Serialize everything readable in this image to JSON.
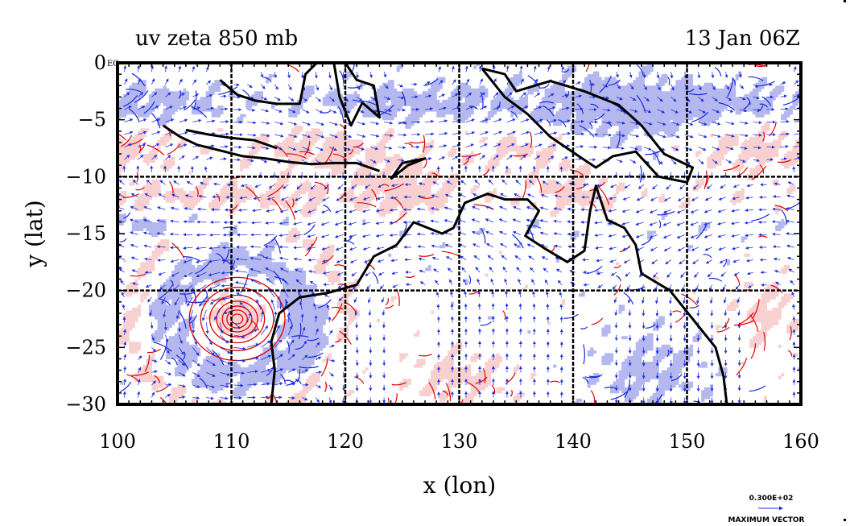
{
  "chart_data": {
    "type": "contour-vector-map",
    "title_left": "uv zeta 850 mb",
    "title_right": "13 Jan 06Z",
    "xlabel": "x (lon)",
    "ylabel": "y (lat)",
    "xlim": [
      100,
      160
    ],
    "ylim": [
      -30,
      0
    ],
    "x_ticks": [
      100,
      110,
      120,
      130,
      140,
      150,
      160
    ],
    "y_ticks": [
      0,
      -5,
      -10,
      -15,
      -20,
      -25,
      -30
    ],
    "x_tick_labels": [
      "100",
      "110",
      "120",
      "130",
      "140",
      "150",
      "160"
    ],
    "y_tick_labels": [
      "0",
      "−5",
      "−10",
      "−15",
      "−20",
      "−25",
      "−30"
    ],
    "equator_label": "EQ",
    "gridlines_x": [
      110,
      120,
      130,
      140,
      150
    ],
    "gridlines_y": [
      -10,
      -20
    ],
    "grid": true,
    "cyclone_center": {
      "lon": 110.5,
      "lat": -22.5
    },
    "vector_legend": {
      "value_text": "0.300E+02",
      "caption": "MAXIMUM VECTOR"
    },
    "colors": {
      "positive_fill": "#f8d0d0",
      "positive_contour": "#e00000",
      "negative_fill": "#b4b8ee",
      "negative_contour": "#1a2ad8",
      "vector": "#2030e0",
      "coastline": "#000000"
    }
  }
}
